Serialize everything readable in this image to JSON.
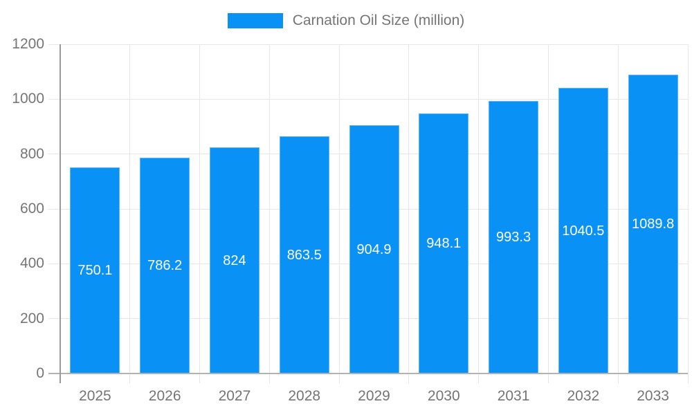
{
  "legend": {
    "label": "Carnation Oil Size (million)",
    "swatch_color": "#0a91f5"
  },
  "chart_data": {
    "type": "bar",
    "title": "Carnation Oil Size (million)",
    "categories": [
      "2025",
      "2026",
      "2027",
      "2028",
      "2029",
      "2030",
      "2031",
      "2032",
      "2033"
    ],
    "values": [
      750.1,
      786.2,
      824,
      863.5,
      904.9,
      948.1,
      993.3,
      1040.5,
      1089.8
    ],
    "xlabel": "",
    "ylabel": "",
    "ylim": [
      0,
      1200
    ],
    "yticks": [
      0,
      200,
      400,
      600,
      800,
      1000,
      1200
    ],
    "grid": true,
    "legend_position": "top",
    "bar_color": "#0a91f5",
    "bar_label_color": "#ffffff",
    "axis_label_color": "#757575",
    "grid_color": "#e6e6e6",
    "axis_line_color": "#9a9a9a"
  }
}
